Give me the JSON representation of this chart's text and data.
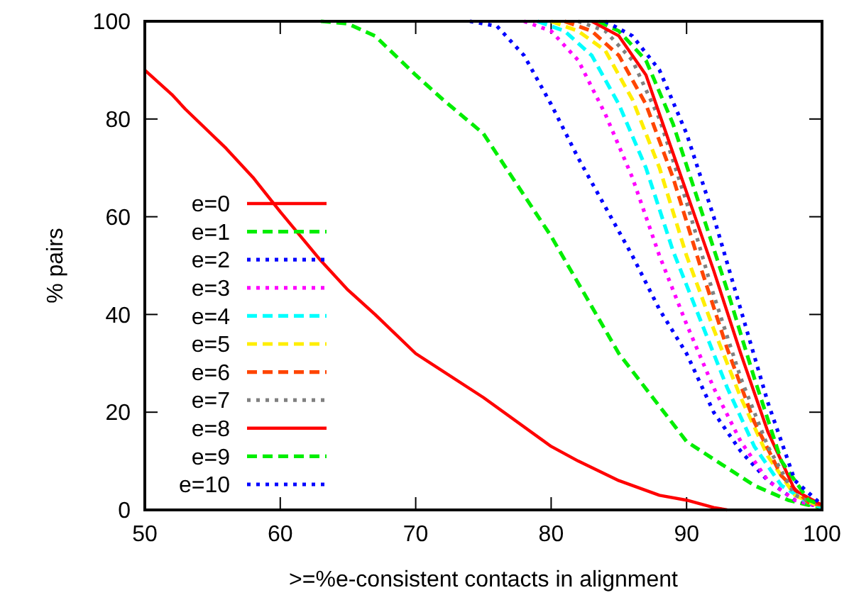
{
  "chart_data": {
    "type": "line",
    "xlabel": ">=%e-consistent contacts in alignment",
    "ylabel": "% pairs",
    "xlim": [
      50,
      100
    ],
    "ylim": [
      0,
      100
    ],
    "xticks": [
      50,
      60,
      70,
      80,
      90,
      100
    ],
    "yticks": [
      0,
      20,
      40,
      60,
      80,
      100
    ],
    "grid": false,
    "legend": "bottom left",
    "marker": "none",
    "series": [
      {
        "name": "e=0",
        "color": "#ff0000",
        "line_style": "solid",
        "x": [
          50,
          52,
          53,
          56,
          58,
          60,
          63,
          65,
          67,
          70,
          75,
          80,
          82,
          85,
          88,
          90,
          92,
          93
        ],
        "values": [
          90,
          85,
          82,
          74,
          68,
          61,
          51,
          45,
          40,
          32,
          23,
          13,
          10,
          6,
          3,
          2,
          0.5,
          0
        ]
      },
      {
        "name": "e=1",
        "color": "#00ee00",
        "line_style": "dashed",
        "x": [
          63,
          65,
          67,
          70,
          72,
          75,
          80,
          85,
          90,
          95,
          97.5,
          99,
          100
        ],
        "values": [
          100,
          99.5,
          97,
          89,
          84,
          77,
          56,
          32,
          14,
          5,
          2,
          1,
          0.5
        ]
      },
      {
        "name": "e=2",
        "color": "#0000ff",
        "line_style": "dotted",
        "x": [
          74,
          76,
          78,
          80,
          82,
          84,
          86,
          88,
          90,
          92,
          94,
          96,
          98,
          100
        ],
        "values": [
          100,
          99,
          93,
          83,
          72,
          62,
          52,
          41,
          32,
          20,
          12,
          6,
          2,
          0.5
        ]
      },
      {
        "name": "e=3",
        "color": "#ff00ff",
        "line_style": "dotted",
        "x": [
          78,
          80,
          82,
          84,
          86,
          88,
          90,
          92,
          94,
          96,
          98,
          100
        ],
        "values": [
          100,
          98,
          92,
          81,
          68,
          52,
          38,
          25,
          14,
          6,
          2,
          0.5
        ]
      },
      {
        "name": "e=4",
        "color": "#00ffff",
        "line_style": "dashed",
        "x": [
          79,
          81,
          83,
          85,
          87,
          89,
          91,
          93,
          95,
          97,
          99,
          100
        ],
        "values": [
          100,
          98,
          93,
          83,
          70,
          53,
          39,
          25,
          13,
          5,
          1.5,
          0.5
        ]
      },
      {
        "name": "e=5",
        "color": "#ffee00",
        "line_style": "dashed",
        "x": [
          80,
          82,
          84,
          86,
          88,
          90,
          92,
          94,
          96,
          98,
          100
        ],
        "values": [
          100,
          98,
          94,
          84,
          70,
          52,
          37,
          23,
          11,
          3,
          0.5
        ]
      },
      {
        "name": "e=6",
        "color": "#ff4500",
        "line_style": "dashed",
        "x": [
          81,
          83,
          85,
          87,
          89,
          91,
          93,
          95,
          97,
          99,
          100
        ],
        "values": [
          100,
          98,
          93,
          83,
          68,
          50,
          33,
          18,
          7,
          1.5,
          1
        ]
      },
      {
        "name": "e=7",
        "color": "#808080",
        "line_style": "dotted",
        "x": [
          82,
          84,
          86,
          88,
          90,
          92,
          94,
          96,
          98,
          100
        ],
        "values": [
          100,
          98,
          92,
          80,
          63,
          44,
          27,
          13,
          3,
          1
        ]
      },
      {
        "name": "e=8",
        "color": "#ff0000",
        "line_style": "solid",
        "x": [
          83,
          85,
          87,
          89,
          90,
          92,
          94,
          96,
          98,
          100
        ],
        "values": [
          100,
          97,
          89,
          73,
          65,
          49,
          32,
          16,
          4,
          1
        ]
      },
      {
        "name": "e=9",
        "color": "#00ee00",
        "line_style": "dashed",
        "x": [
          83.5,
          85,
          87,
          89,
          91,
          93,
          95,
          97,
          99,
          100
        ],
        "values": [
          100,
          98,
          92,
          79,
          62,
          45,
          27,
          10,
          2,
          1
        ]
      },
      {
        "name": "e=10",
        "color": "#0000ff",
        "line_style": "dotted",
        "x": [
          84,
          86,
          88,
          90,
          92,
          94,
          96,
          98,
          100
        ],
        "values": [
          100,
          97,
          90,
          77,
          60,
          41,
          22,
          6,
          1
        ]
      }
    ]
  }
}
